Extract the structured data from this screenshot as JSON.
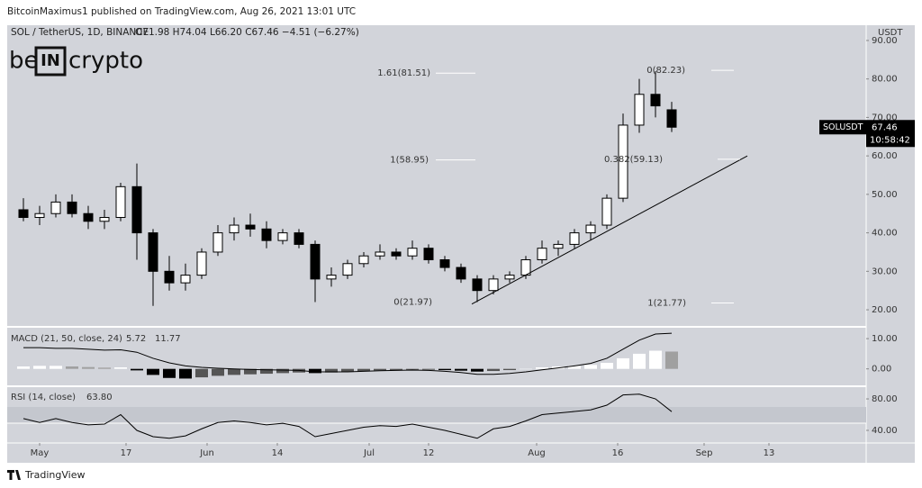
{
  "header": {
    "publisher": "BitcoinMaximus1 published on TradingView.com, Aug 26, 2021 13:01 UTC",
    "symbol": "SOL / TetherUS, 1D, BINANCE",
    "ohlc": "O71.98  H74.04  L66.20  C67.46  −4.51 (−6.27%)",
    "logo": [
      "be",
      "IN",
      "crypto"
    ]
  },
  "footer": "TradingView",
  "chart_data": [
    {
      "type": "candlestick",
      "axis_unit": "USDT",
      "x": [
        "Apr 28",
        "May 1",
        "May 4",
        "May 7",
        "May 10",
        "May 13",
        "May 16",
        "May 19",
        "May 22",
        "May 25",
        "May 28",
        "May 31",
        "Jun 3",
        "Jun 6",
        "Jun 9",
        "Jun 12",
        "Jun 15",
        "Jun 18",
        "Jun 21",
        "Jun 24",
        "Jun 27",
        "Jun 30",
        "Jul 3",
        "Jul 6",
        "Jul 9",
        "Jul 12",
        "Jul 15",
        "Jul 18",
        "Jul 21",
        "Jul 24",
        "Jul 27",
        "Jul 30",
        "Aug 2",
        "Aug 5",
        "Aug 8",
        "Aug 11",
        "Aug 14",
        "Aug 17",
        "Aug 20",
        "Aug 23",
        "Aug 26"
      ],
      "open": [
        46,
        44,
        45,
        48,
        45,
        43,
        44,
        52,
        40,
        30,
        27,
        29,
        35,
        40,
        42,
        41,
        38,
        40,
        37,
        28,
        29,
        32,
        34,
        35,
        34,
        36,
        33,
        31,
        28,
        25,
        28,
        29,
        33,
        36,
        37,
        40,
        42,
        49,
        68,
        76,
        71.98
      ],
      "high": [
        49,
        47,
        50,
        50,
        47,
        46,
        53,
        58,
        41,
        34,
        32,
        36,
        42,
        44,
        45,
        43,
        41,
        41,
        38,
        31,
        33,
        35,
        37,
        36,
        38,
        37,
        34,
        32,
        29,
        29,
        30,
        34,
        38,
        38,
        41,
        43,
        50,
        71,
        80,
        82,
        74.04
      ],
      "low": [
        43,
        42,
        44,
        44,
        41,
        41,
        43,
        33,
        21,
        25,
        25,
        28,
        34,
        38,
        39,
        36,
        37,
        36,
        22,
        26,
        28,
        31,
        33,
        33,
        33,
        32,
        30,
        27,
        22,
        24,
        27,
        28,
        32,
        34,
        36,
        38,
        41,
        48,
        66,
        70,
        66.2
      ],
      "close": [
        44,
        45,
        48,
        45,
        43,
        44,
        52,
        40,
        30,
        27,
        29,
        35,
        40,
        42,
        41,
        38,
        40,
        37,
        28,
        29,
        32,
        34,
        35,
        34,
        36,
        33,
        31,
        28,
        25,
        28,
        29,
        33,
        36,
        37,
        40,
        42,
        49,
        68,
        76,
        73,
        67.46
      ],
      "up_color": "#ffffff",
      "down_color": "#000000",
      "xlim": [
        "Apr 25",
        "Oct 1"
      ],
      "xticks": [
        {
          "value": "May 1",
          "label": "May"
        },
        {
          "value": "May 17",
          "label": "17"
        },
        {
          "value": "Jun 1",
          "label": "Jun"
        },
        {
          "value": "Jun 14",
          "label": "14"
        },
        {
          "value": "Jul 1",
          "label": "Jul"
        },
        {
          "value": "Jul 12",
          "label": "12"
        },
        {
          "value": "Aug 1",
          "label": "Aug"
        },
        {
          "value": "Aug 16",
          "label": "16"
        },
        {
          "value": "Sep 1",
          "label": "Sep"
        },
        {
          "value": "Sep 13",
          "label": "13"
        }
      ],
      "ylim": [
        15.8,
        93.5
      ],
      "yticks": [
        {
          "value": 20,
          "label": "20.00"
        },
        {
          "value": 30,
          "label": "30.00"
        },
        {
          "value": 40,
          "label": "40.00"
        },
        {
          "value": 50,
          "label": "50.00"
        },
        {
          "value": 60,
          "label": "60.00"
        },
        {
          "value": 70,
          "label": "70.00"
        },
        {
          "value": 80,
          "label": "80.00"
        },
        {
          "value": 90,
          "label": "90.00"
        }
      ],
      "annotations": [
        {
          "label": "1.61(81.51)",
          "value": 81.51
        },
        {
          "label": "1(58.95)",
          "value": 58.95
        },
        {
          "label": "0(21.97)",
          "value": 21.97
        },
        {
          "label": "0(82.23)",
          "value": 82.23
        },
        {
          "label": "0.382(59.13)",
          "value": 59.13
        },
        {
          "label": "1(21.77)",
          "value": 21.77
        }
      ],
      "trendline": {
        "x": [
          "Jul 20",
          "Sep 9"
        ],
        "values": [
          21.5,
          60
        ]
      },
      "price_label": {
        "symbol": "SOLUSDT",
        "value": 67.46,
        "countdown": "10:58:42"
      }
    },
    {
      "type": "macd",
      "title": "MACD (21, 50, close, 24)",
      "readout": [
        5.72,
        11.77
      ],
      "values": [
        7,
        7,
        6.8,
        6.8,
        6.5,
        6.2,
        6.3,
        5.5,
        3.5,
        2,
        1,
        0.5,
        0.2,
        0,
        -0.2,
        -0.3,
        -0.4,
        -0.5,
        -1,
        -1,
        -1,
        -0.8,
        -0.6,
        -0.5,
        -0.4,
        -0.5,
        -0.8,
        -1.2,
        -1.8,
        -1.8,
        -1.5,
        -1,
        -0.3,
        0.3,
        1,
        1.8,
        3.5,
        6.5,
        9.5,
        11.5,
        11.77
      ],
      "histogram": [
        0.8,
        1,
        1,
        0.8,
        0.6,
        0.4,
        0.5,
        -0.5,
        -2,
        -3,
        -3.2,
        -2.8,
        -2.3,
        -2,
        -1.8,
        -1.6,
        -1.4,
        -1.2,
        -1.4,
        -1.2,
        -1,
        -0.8,
        -0.5,
        -0.4,
        -0.3,
        -0.3,
        -0.4,
        -0.6,
        -0.9,
        -0.7,
        -0.4,
        0,
        0.5,
        0.8,
        1,
        1.3,
        2,
        3.5,
        5,
        6,
        5.72
      ],
      "ylim": [
        -5.45,
        13.6
      ],
      "yticks": [
        {
          "value": 0,
          "label": "0.00"
        },
        {
          "value": 10,
          "label": "10.00"
        }
      ]
    },
    {
      "type": "rsi",
      "title": "RSI (14, close)",
      "readout": {
        "value": 63.8,
        "label": "63.80"
      },
      "values": [
        55,
        50,
        55,
        50,
        47,
        48,
        60,
        40,
        32,
        30,
        33,
        42,
        50,
        52,
        50,
        47,
        49,
        45,
        32,
        36,
        40,
        44,
        46,
        45,
        48,
        44,
        40,
        35,
        30,
        42,
        45,
        52,
        60,
        62,
        64,
        66,
        72,
        85,
        86,
        80,
        63.8
      ],
      "ylim": [
        24,
        94.9
      ],
      "yticks": [
        {
          "value": 40,
          "label": "40.00"
        },
        {
          "value": 80,
          "label": "80.00"
        }
      ]
    }
  ]
}
